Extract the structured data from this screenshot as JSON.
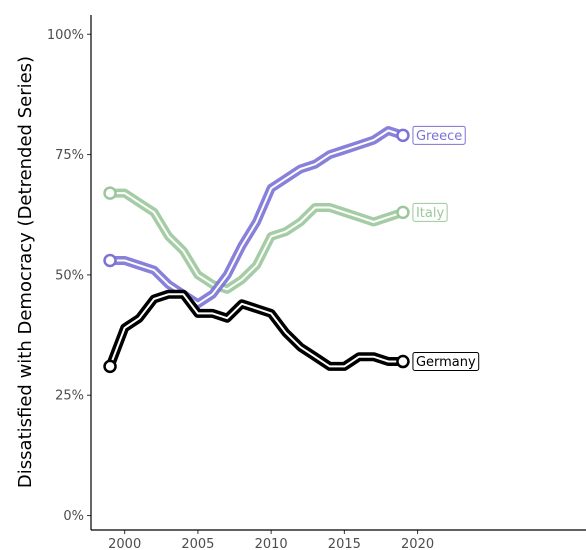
{
  "chart_data": {
    "type": "line",
    "title": "",
    "xlabel": "",
    "ylabel": "Dissatisfied with Democracy (Detrended Series)",
    "xlim": [
      1997.7,
      2031.5
    ],
    "ylim": [
      -0.03,
      1.04
    ],
    "x_ticks": [
      "2000",
      "2005",
      "2010",
      "2015",
      "2020"
    ],
    "x_tick_values": [
      2000,
      2005,
      2010,
      2015,
      2020
    ],
    "y_ticks": [
      "0%",
      "25%",
      "50%",
      "75%",
      "100%"
    ],
    "y_tick_values": [
      0,
      0.25,
      0.5,
      0.75,
      1.0
    ],
    "grid": false,
    "series": [
      {
        "name": "Italy",
        "color": "#9bc89b",
        "x": [
          1999,
          2000,
          2001,
          2002,
          2003,
          2004,
          2005,
          2006,
          2007,
          2008,
          2009,
          2010,
          2011,
          2012,
          2013,
          2014,
          2015,
          2016,
          2017,
          2018,
          2019
        ],
        "values": [
          0.67,
          0.67,
          0.65,
          0.63,
          0.58,
          0.55,
          0.5,
          0.48,
          0.47,
          0.49,
          0.52,
          0.58,
          0.59,
          0.61,
          0.64,
          0.64,
          0.63,
          0.62,
          0.61,
          0.62,
          0.63
        ]
      },
      {
        "name": "Greece",
        "color": "#7b73d6",
        "x": [
          1999,
          2000,
          2001,
          2002,
          2003,
          2004,
          2005,
          2006,
          2007,
          2008,
          2009,
          2010,
          2011,
          2012,
          2013,
          2014,
          2015,
          2016,
          2017,
          2018,
          2019
        ],
        "values": [
          0.53,
          0.53,
          0.52,
          0.51,
          0.48,
          0.46,
          0.44,
          0.46,
          0.5,
          0.56,
          0.61,
          0.68,
          0.7,
          0.72,
          0.73,
          0.75,
          0.76,
          0.77,
          0.78,
          0.8,
          0.79
        ]
      },
      {
        "name": "Germany",
        "color": "#000000",
        "x": [
          1999,
          2000,
          2001,
          2002,
          2003,
          2004,
          2005,
          2006,
          2007,
          2008,
          2009,
          2010,
          2011,
          2012,
          2013,
          2014,
          2015,
          2016,
          2017,
          2018,
          2019
        ],
        "values": [
          0.31,
          0.39,
          0.41,
          0.45,
          0.46,
          0.46,
          0.42,
          0.42,
          0.41,
          0.44,
          0.43,
          0.42,
          0.38,
          0.35,
          0.33,
          0.31,
          0.31,
          0.33,
          0.33,
          0.32,
          0.32
        ]
      }
    ]
  }
}
